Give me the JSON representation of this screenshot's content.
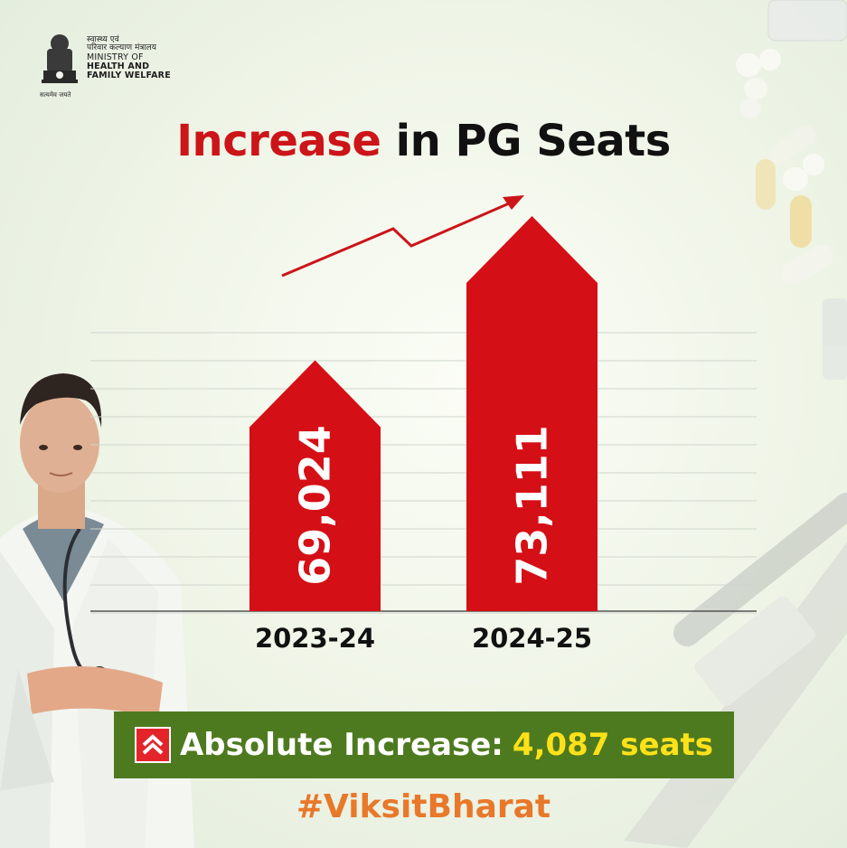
{
  "header": {
    "ministry_hindi_1": "स्वास्थ्य एवं",
    "ministry_hindi_2": "परिवार कल्याण मंत्रालय",
    "ministry_en_1": "MINISTRY OF",
    "ministry_en_2": "HEALTH AND",
    "ministry_en_3": "FAMILY WELFARE",
    "motto": "सत्यमेव जयते"
  },
  "title": {
    "highlight": "Increase",
    "rest": " in PG Seats"
  },
  "colors": {
    "title_red": "#cc1419",
    "bar_red": "#d50f16",
    "banner_green": "#4e7a1f",
    "highlight_yellow": "#ffe11a",
    "hashtag_orange": "#e8782a"
  },
  "chart_data": {
    "type": "bar",
    "categories": [
      "2023-24",
      "2024-25"
    ],
    "values": [
      69024,
      73111
    ],
    "value_labels": [
      "69,024",
      "73,111"
    ],
    "title": "Increase in PG Seats",
    "trend": "up",
    "grid": true
  },
  "banner": {
    "icon": "double-chevron-up-icon",
    "label": "Absolute Increase:",
    "value": "4,087 seats"
  },
  "hashtag": "#ViksitBharat"
}
